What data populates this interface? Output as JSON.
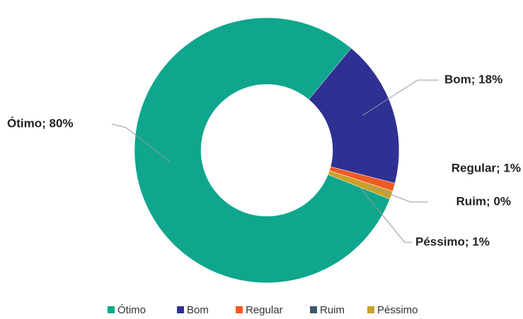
{
  "chart_data": {
    "type": "donut",
    "categories": [
      "Ótimo",
      "Bom",
      "Regular",
      "Ruim",
      "Péssimo"
    ],
    "values": [
      80,
      18,
      1,
      0,
      1
    ],
    "value_labels": [
      "Ótimo; 80%",
      "Bom; 18%",
      "Regular; 1%",
      "Ruim; 0%",
      "Péssimo; 1%"
    ],
    "colors": [
      "#0fa68d",
      "#2e3192",
      "#f15a24",
      "#3e5a6b",
      "#c9a227"
    ]
  }
}
